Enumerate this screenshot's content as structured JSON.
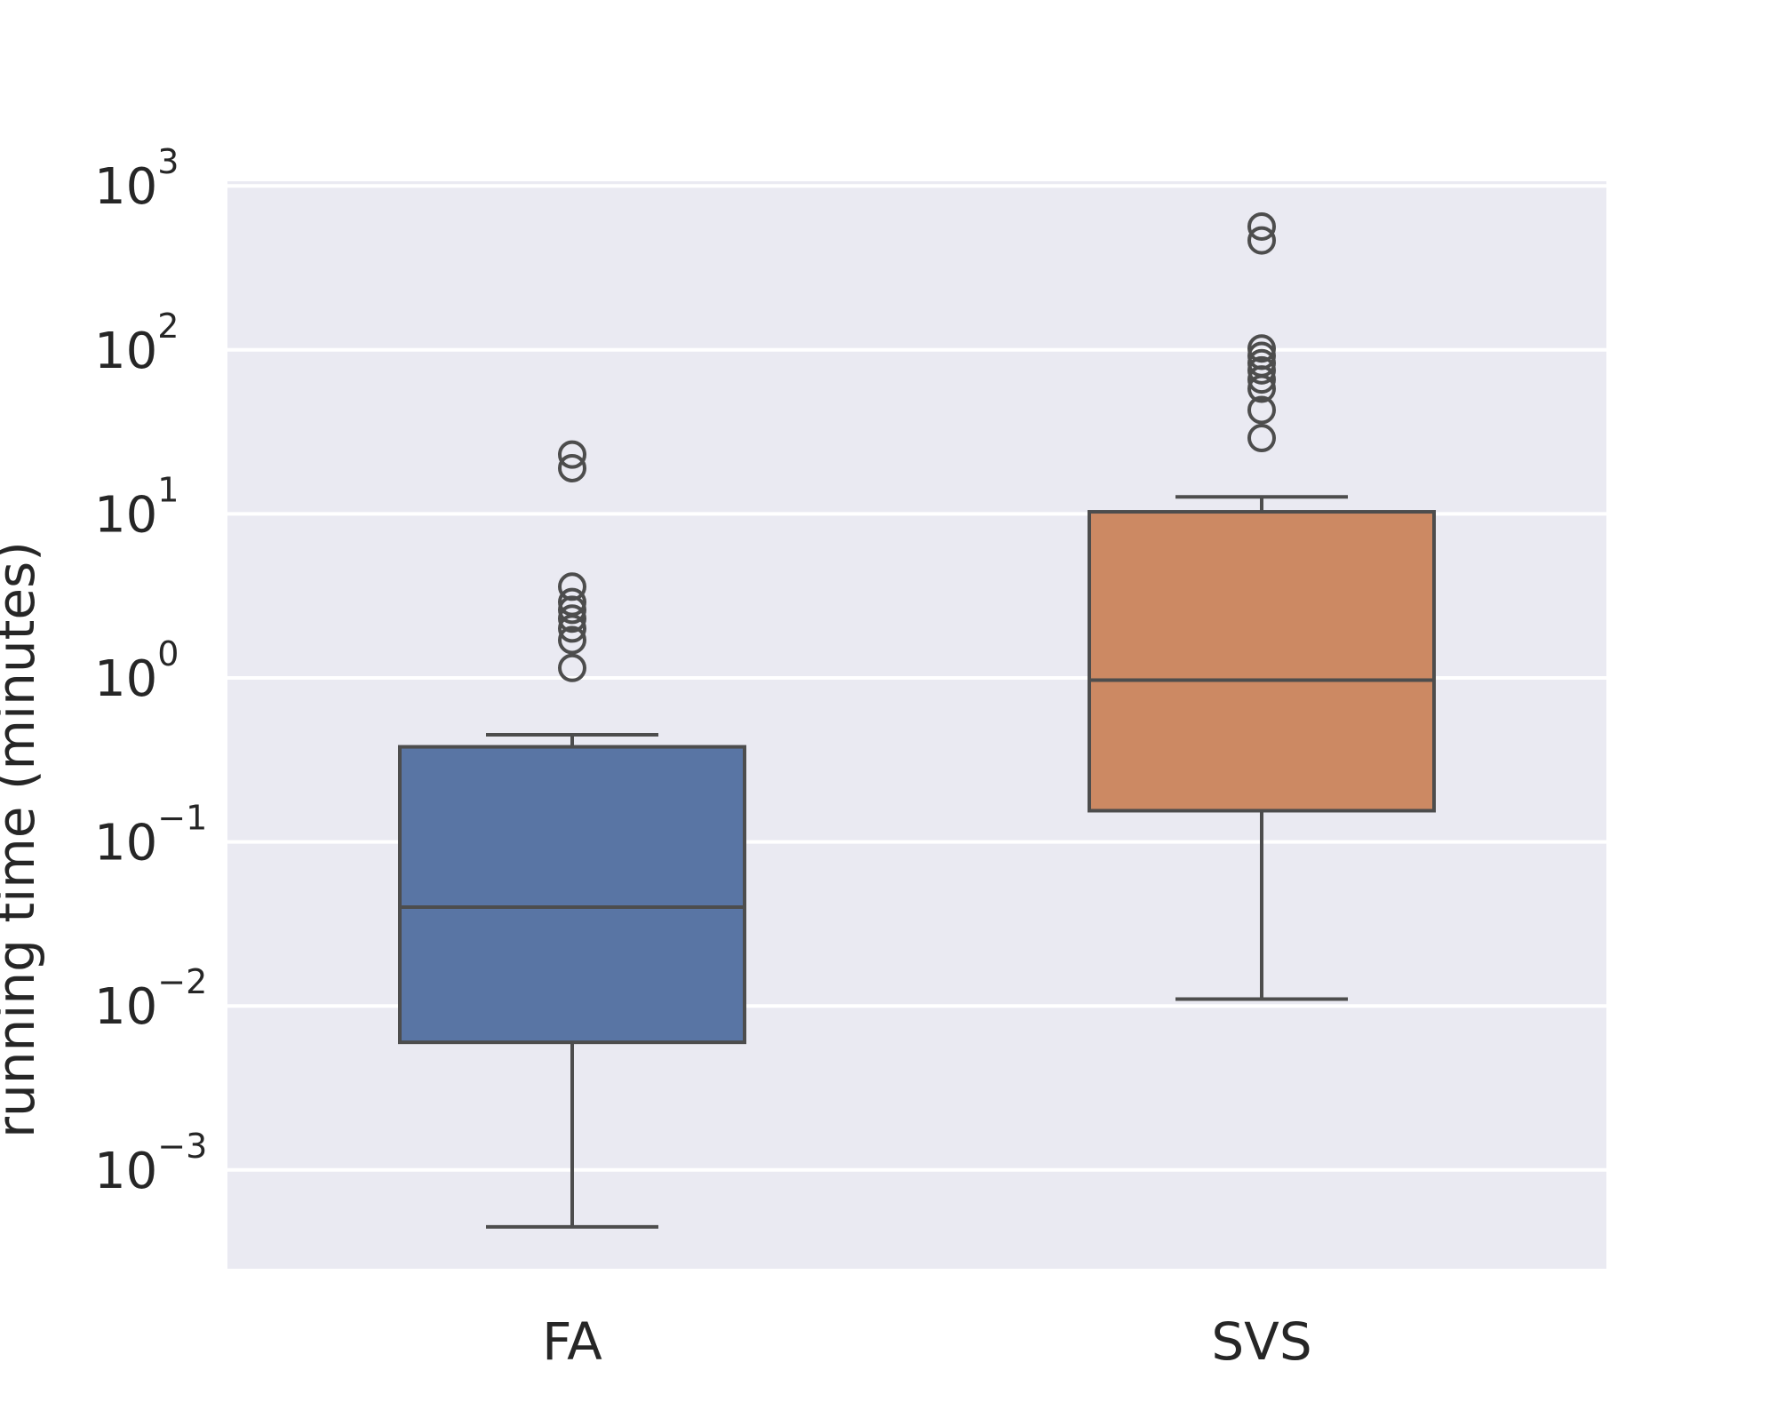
{
  "chart_data": {
    "type": "box",
    "title": "",
    "xlabel": "",
    "ylabel": "running time (minutes)",
    "yscale": "log",
    "ylim": [
      0.0002,
      1200
    ],
    "grid": true,
    "legend": "none",
    "background_color": "#EAEAF2",
    "grid_color": "#FFFFFF",
    "edge_color": "#4D4D4D",
    "y_ticks": [
      {
        "value": 0.001,
        "base": "10",
        "exp": "−3"
      },
      {
        "value": 0.01,
        "base": "10",
        "exp": "−2"
      },
      {
        "value": 0.1,
        "base": "10",
        "exp": "−1"
      },
      {
        "value": 1,
        "base": "10",
        "exp": "0"
      },
      {
        "value": 10,
        "base": "10",
        "exp": "1"
      },
      {
        "value": 100,
        "base": "10",
        "exp": "2"
      },
      {
        "value": 1000,
        "base": "10",
        "exp": "3"
      }
    ],
    "categories": [
      "FA",
      "SVS"
    ],
    "series": [
      {
        "category": "FA",
        "color": "#5975A4",
        "whisker_low": 0.00045,
        "q1": 0.006,
        "median": 0.04,
        "q3": 0.38,
        "whisker_high": 0.45,
        "outliers": [
          1.15,
          1.7,
          2.0,
          2.3,
          2.6,
          2.9,
          3.6,
          19,
          23
        ]
      },
      {
        "category": "SVS",
        "color": "#CC8963",
        "whisker_low": 0.011,
        "q1": 0.155,
        "median": 0.97,
        "q3": 10.3,
        "whisker_high": 12.7,
        "outliers": [
          29,
          43,
          58,
          66,
          75,
          83,
          92,
          102,
          465,
          565
        ]
      }
    ]
  }
}
